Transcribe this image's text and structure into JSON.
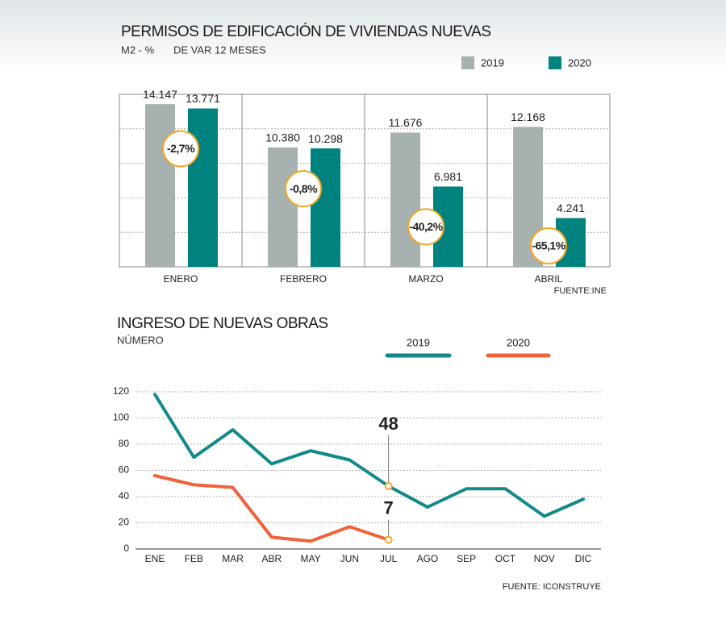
{
  "chart_data": [
    {
      "type": "bar",
      "title": "PERMISOS DE EDIFICACIÓN DE VIVIENDAS NUEVAS",
      "units": "M2 - %",
      "subtitle": "DE VAR 12 MESES",
      "source": "FUENTE:INE",
      "categories": [
        "ENERO",
        "FEBRERO",
        "MARZO",
        "ABRIL"
      ],
      "series": [
        {
          "name": "2019",
          "color": "#a7b1b0",
          "values": [
            14147,
            10380,
            11676,
            12168
          ],
          "value_labels": [
            "14.147",
            "10.380",
            "11.676",
            "12.168"
          ]
        },
        {
          "name": "2020",
          "color": "#00827f",
          "values": [
            13771,
            10298,
            6981,
            4241
          ],
          "value_labels": [
            "13.771",
            "10.298",
            "6.981",
            "4.241"
          ]
        }
      ],
      "changes": [
        "-2,7%",
        "-0,8%",
        "-40,2%",
        "-65,1%"
      ],
      "ylim": [
        0,
        15000
      ],
      "yticks": [
        3000,
        6000,
        9000,
        12000
      ],
      "grid": true
    },
    {
      "type": "line",
      "title": "INGRESO DE NUEVAS OBRAS",
      "subtitle": "NÚMERO",
      "source": "FUENTE: ICONSTRUYE",
      "categories": [
        "ENE",
        "FEB",
        "MAR",
        "ABR",
        "MAY",
        "JUN",
        "JUL",
        "AGO",
        "SEP",
        "OCT",
        "NOV",
        "DIC"
      ],
      "series": [
        {
          "name": "2019",
          "color": "#128a89",
          "values": [
            118,
            70,
            91,
            65,
            75,
            68,
            48,
            32,
            46,
            46,
            25,
            38
          ]
        },
        {
          "name": "2020",
          "color": "#f0623a",
          "values": [
            56,
            49,
            47,
            9,
            6,
            17,
            7,
            null,
            null,
            null,
            null,
            null
          ]
        }
      ],
      "highlight": "JUL",
      "ylim": [
        0,
        120
      ],
      "yticks": [
        0,
        20,
        40,
        60,
        80,
        100,
        120
      ],
      "grid": true
    }
  ]
}
